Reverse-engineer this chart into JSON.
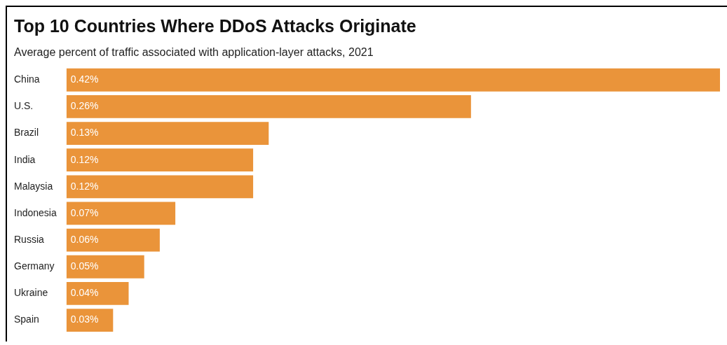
{
  "chart_data": {
    "type": "bar",
    "orientation": "horizontal",
    "title": "Top 10 Countries Where DDoS Attacks Originate",
    "subtitle": "Average percent of traffic associated with application-layer attacks, 2021",
    "categories": [
      "China",
      "U.S.",
      "Brazil",
      "India",
      "Malaysia",
      "Indonesia",
      "Russia",
      "Germany",
      "Ukraine",
      "Spain"
    ],
    "values": [
      0.42,
      0.26,
      0.13,
      0.12,
      0.12,
      0.07,
      0.06,
      0.05,
      0.04,
      0.03
    ],
    "value_labels": [
      "0.42%",
      "0.26%",
      "0.13%",
      "0.12%",
      "0.12%",
      "0.07%",
      "0.06%",
      "0.05%",
      "0.04%",
      "0.03%"
    ],
    "color": "#ea943a",
    "xlim": [
      0,
      0.42
    ],
    "tick_labels": "y",
    "grid": false,
    "legend": false
  }
}
